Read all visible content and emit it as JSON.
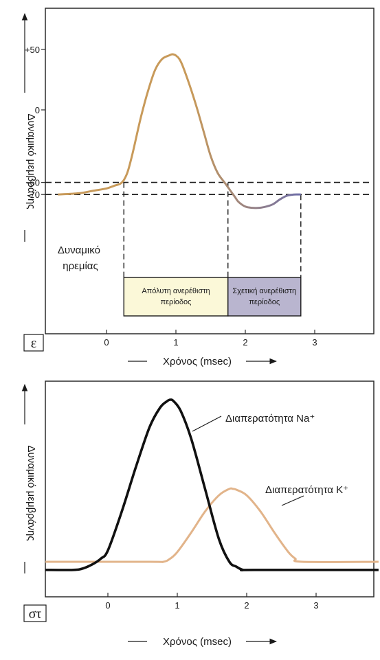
{
  "colors": {
    "frame": "#2a2a2a",
    "ap_rise": "#c89a5a",
    "ap_fall": "#6e6ea8",
    "box_absolute": "#fbf8d8",
    "box_relative": "#b9b5cf",
    "na_line": "#111111",
    "k_line": "#e2b48a"
  },
  "chart_data": [
    {
      "type": "line",
      "panel_label": "ε",
      "xlabel": "Χρόνος (msec)",
      "ylabel": "Δυναμικό μεμβράνης",
      "xlim": [
        -0.7,
        3.0
      ],
      "ylim": [
        -140,
        60
      ],
      "x_ticks": [
        "0",
        "1",
        "2",
        "3"
      ],
      "y_ticks": [
        "+50",
        "0",
        "-60",
        "-70"
      ],
      "y_tick_values": [
        50,
        0,
        -60,
        -70
      ],
      "threshold_lines": [
        -60,
        -70
      ],
      "series": [
        {
          "x": [
            -0.7,
            -0.4,
            -0.2,
            0.0,
            0.1,
            0.2,
            0.25,
            0.3,
            0.35,
            0.4,
            0.5,
            0.6,
            0.7,
            0.8,
            0.9,
            0.95,
            1.0,
            1.05,
            1.1,
            1.2,
            1.3,
            1.4,
            1.5,
            1.6,
            1.7,
            1.75,
            1.8,
            1.85,
            1.9,
            2.0,
            2.1,
            2.2,
            2.3,
            2.4,
            2.5,
            2.6,
            2.7,
            2.8
          ],
          "y": [
            -70,
            -69,
            -67,
            -65,
            -63,
            -61,
            -58,
            -52,
            -42,
            -30,
            -5,
            16,
            33,
            42,
            45,
            46,
            45,
            42,
            36,
            20,
            2,
            -18,
            -38,
            -52,
            -60,
            -64,
            -68,
            -72,
            -76,
            -80,
            -81,
            -81,
            -80,
            -78,
            -74,
            -71,
            -70,
            -70
          ]
        }
      ],
      "annotations": [
        {
          "text": "Δυναμικό ηρεμίας",
          "x": -0.4,
          "y": -85
        }
      ],
      "refractory_periods": [
        {
          "label": "Απόλυτη ανερέθιστη περίοδος",
          "x_start": 0.25,
          "x_end": 1.75
        },
        {
          "label": "Σχετική ανερέθιστη περίοδος",
          "x_start": 1.75,
          "x_end": 2.8
        }
      ]
    },
    {
      "type": "line",
      "panel_label": "στ",
      "xlabel": "Χρόνος (msec)",
      "ylabel": "Δυναμικό μεμβράνης",
      "xlim": [
        -0.9,
        3.9
      ],
      "ylim": [
        -0.1,
        1.0
      ],
      "x_ticks": [
        "0",
        "1",
        "2",
        "3"
      ],
      "series": [
        {
          "name": "Διαπερατότητα Na⁺",
          "x": [
            -0.9,
            -0.5,
            -0.35,
            -0.2,
            -0.1,
            0.0,
            0.2,
            0.4,
            0.6,
            0.75,
            0.85,
            0.9,
            0.95,
            1.05,
            1.2,
            1.4,
            1.6,
            1.75,
            1.85,
            1.95,
            2.1,
            3.9
          ],
          "y": [
            -0.05,
            -0.05,
            -0.04,
            -0.01,
            0.02,
            0.07,
            0.31,
            0.58,
            0.83,
            0.95,
            0.99,
            1.0,
            0.99,
            0.93,
            0.76,
            0.45,
            0.14,
            0.0,
            -0.03,
            -0.05,
            -0.05,
            -0.05
          ]
        },
        {
          "name": "Διαπερατότητα K⁺",
          "x": [
            -0.9,
            0.6,
            0.8,
            0.9,
            1.0,
            1.2,
            1.4,
            1.6,
            1.75,
            1.8,
            1.85,
            2.0,
            2.2,
            2.4,
            2.6,
            2.7,
            2.8,
            3.9
          ],
          "y": [
            0.0,
            0.0,
            0.0,
            0.02,
            0.06,
            0.18,
            0.31,
            0.41,
            0.45,
            0.45,
            0.445,
            0.41,
            0.31,
            0.18,
            0.06,
            0.02,
            0.0,
            0.0
          ]
        }
      ]
    }
  ]
}
